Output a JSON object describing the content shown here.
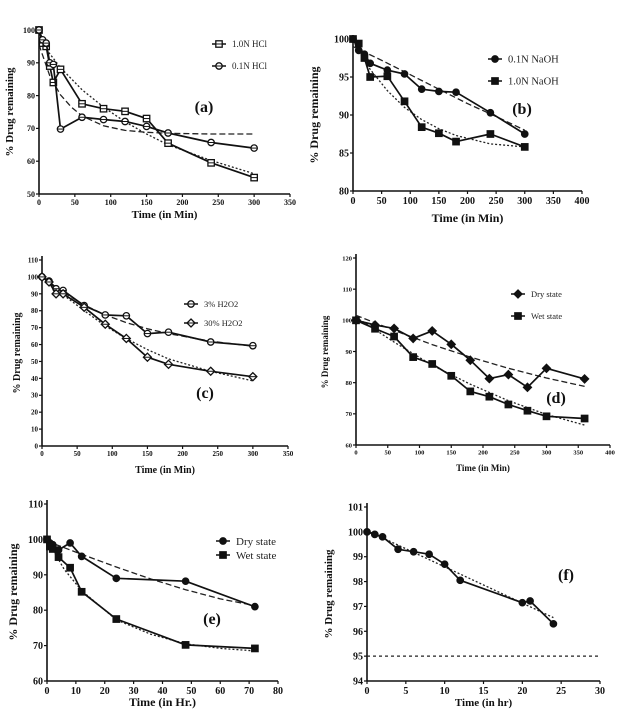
{
  "chart_data": [
    {
      "id": "a",
      "type": "line",
      "panel_label": "(a)",
      "xlabel": "Time (in Min)",
      "ylabel": "% Drug remaining",
      "xlim": [
        0,
        350
      ],
      "ylim": [
        50,
        100
      ],
      "xticks": [
        0,
        50,
        100,
        150,
        200,
        250,
        300,
        350
      ],
      "yticks": [
        50,
        60,
        70,
        80,
        90,
        100
      ],
      "legend_position": "top-right",
      "series": [
        {
          "name": "1.0N HCl",
          "marker": "square-open",
          "x": [
            0,
            5,
            10,
            15,
            20,
            30,
            60,
            90,
            120,
            150,
            180,
            240,
            300
          ],
          "y": [
            100,
            96,
            95,
            89,
            84,
            88,
            77.5,
            76,
            75.2,
            73,
            65.5,
            59.5,
            55
          ]
        },
        {
          "name": "0.1N HCl",
          "marker": "circle-open",
          "x": [
            0,
            5,
            10,
            15,
            20,
            30,
            60,
            90,
            120,
            150,
            180,
            240,
            300
          ],
          "y": [
            100,
            97,
            96,
            90,
            89.5,
            69.8,
            73.4,
            72.7,
            72.1,
            70.6,
            68.6,
            65.7,
            64
          ]
        }
      ],
      "fits": [
        {
          "style": "dashed",
          "x": [
            0,
            15,
            30,
            45,
            60,
            90,
            120,
            150,
            180,
            240,
            300
          ],
          "y": [
            95.5,
            86,
            80.2,
            76.5,
            73.8,
            70.8,
            69.4,
            68.8,
            68.5,
            68.3,
            68.3
          ]
        },
        {
          "style": "dotted",
          "x": [
            0,
            30,
            60,
            90,
            120,
            150,
            180,
            240,
            300
          ],
          "y": [
            97,
            88.5,
            81.8,
            76.5,
            72,
            68.3,
            65,
            60.2,
            56.2
          ]
        }
      ]
    },
    {
      "id": "b",
      "type": "line",
      "panel_label": "(b)",
      "xlabel": "Time (in Min)",
      "ylabel": "% Drug remaining",
      "xlim": [
        0,
        400
      ],
      "ylim": [
        80,
        100
      ],
      "xticks": [
        0,
        50,
        100,
        150,
        200,
        250,
        300,
        350,
        400
      ],
      "yticks": [
        80,
        85,
        90,
        95,
        100
      ],
      "legend_position": "top-right",
      "series": [
        {
          "name": "0.1N NaOH",
          "marker": "circle-filled",
          "x": [
            0,
            10,
            20,
            30,
            60,
            90,
            120,
            150,
            180,
            240,
            300
          ],
          "y": [
            100,
            98.5,
            98,
            96.8,
            95.9,
            95.4,
            93.4,
            93.1,
            93,
            90.3,
            87.5
          ]
        },
        {
          "name": "1.0N NaOH",
          "marker": "square-filled",
          "x": [
            0,
            10,
            20,
            30,
            60,
            90,
            120,
            150,
            180,
            240,
            300
          ],
          "y": [
            100,
            99.4,
            97.5,
            95,
            95.1,
            91.8,
            88.4,
            87.6,
            86.5,
            87.5,
            85.8
          ]
        }
      ],
      "fits": [
        {
          "style": "dashed",
          "x": [
            0,
            50,
            100,
            150,
            200,
            250,
            300
          ],
          "y": [
            99,
            97.2,
            95.3,
            93.4,
            91.5,
            89.8,
            88
          ]
        },
        {
          "style": "dotted",
          "x": [
            0,
            30,
            60,
            90,
            120,
            150,
            180,
            240,
            300
          ],
          "y": [
            99.8,
            96,
            93.2,
            91,
            89.4,
            88.2,
            87.3,
            86.2,
            85.8
          ]
        }
      ]
    },
    {
      "id": "c",
      "type": "line",
      "panel_label": "(c)",
      "xlabel": "Time (in Min)",
      "ylabel": "% Drug remaining",
      "xlim": [
        0,
        350
      ],
      "ylim": [
        0,
        110
      ],
      "xticks": [
        0,
        50,
        100,
        150,
        200,
        250,
        300,
        350
      ],
      "yticks": [
        0,
        10,
        20,
        30,
        40,
        50,
        60,
        70,
        80,
        90,
        100,
        110
      ],
      "legend_position": "top-right",
      "series": [
        {
          "name": "3% H2O2",
          "marker": "circle-open",
          "x": [
            0,
            10,
            20,
            30,
            60,
            90,
            120,
            150,
            180,
            240,
            300
          ],
          "y": [
            100,
            97.5,
            93,
            92,
            83,
            77.5,
            77,
            66.5,
            67.3,
            61.5,
            59.3
          ]
        },
        {
          "name": "30% H2O2",
          "marker": "diamond-open",
          "x": [
            0,
            10,
            20,
            30,
            60,
            90,
            120,
            150,
            180,
            240,
            300
          ],
          "y": [
            100,
            97,
            90,
            90,
            82,
            72,
            63.6,
            52.5,
            48.3,
            44.2,
            41
          ]
        }
      ],
      "fits": [
        {
          "style": "dashed",
          "x": [
            0,
            30,
            60,
            90,
            120,
            150,
            180,
            240,
            300
          ],
          "y": [
            100,
            91,
            83.4,
            77.5,
            73,
            69.3,
            66.5,
            62,
            59
          ]
        },
        {
          "style": "dotted",
          "x": [
            0,
            30,
            60,
            90,
            120,
            150,
            180,
            240,
            300
          ],
          "y": [
            100,
            89.5,
            80,
            71,
            63.5,
            57,
            51.5,
            44.2,
            38.5
          ]
        }
      ]
    },
    {
      "id": "d",
      "type": "line",
      "panel_label": "(d)",
      "xlabel": "Time (in Min)",
      "ylabel": "% Drug remaining",
      "xlim": [
        0,
        400
      ],
      "ylim": [
        60,
        120
      ],
      "xticks": [
        0,
        50,
        100,
        150,
        200,
        250,
        300,
        350,
        400
      ],
      "yticks": [
        60,
        70,
        80,
        90,
        100,
        110,
        120
      ],
      "legend_position": "top-right",
      "series": [
        {
          "name": "Dry state",
          "marker": "diamond-filled",
          "x": [
            0,
            30,
            60,
            90,
            120,
            150,
            180,
            210,
            240,
            270,
            300,
            360
          ],
          "y": [
            100,
            98.5,
            97.4,
            94.2,
            96.6,
            92.3,
            87.2,
            81.3,
            82.6,
            78.5,
            84.6,
            81.2
          ]
        },
        {
          "name": "Wet state",
          "marker": "square-filled",
          "x": [
            0,
            30,
            60,
            90,
            120,
            150,
            180,
            210,
            240,
            270,
            300,
            360
          ],
          "y": [
            100,
            97.3,
            94.8,
            88.2,
            86,
            82.2,
            77.2,
            75.5,
            73,
            71,
            69.2,
            68.5
          ]
        }
      ],
      "fits": [
        {
          "style": "dashed",
          "x": [
            0,
            60,
            120,
            180,
            240,
            300,
            360
          ],
          "y": [
            101.6,
            96.8,
            92.2,
            88.2,
            84.6,
            81.5,
            78.8
          ]
        },
        {
          "style": "dotted",
          "x": [
            0,
            60,
            120,
            180,
            240,
            300,
            360
          ],
          "y": [
            101,
            93,
            85.6,
            79.5,
            74.2,
            69.8,
            66.4
          ]
        }
      ]
    },
    {
      "id": "e",
      "type": "line",
      "panel_label": "(e)",
      "xlabel": "Time (in Hr.)",
      "ylabel": "% Drug remaining",
      "xlim": [
        0,
        80
      ],
      "ylim": [
        60,
        110
      ],
      "xticks": [
        0,
        10,
        20,
        30,
        40,
        50,
        60,
        70,
        80
      ],
      "yticks": [
        60,
        70,
        80,
        90,
        100,
        110
      ],
      "legend_position": "top-right",
      "series": [
        {
          "name": "Dry state",
          "marker": "circle-filled",
          "x": [
            0,
            1,
            2,
            4,
            8,
            12,
            24,
            48,
            72
          ],
          "y": [
            100,
            99,
            98.5,
            97,
            99,
            95.2,
            89,
            88.2,
            81
          ]
        },
        {
          "name": "Wet state",
          "marker": "square-filled",
          "x": [
            0,
            1,
            2,
            4,
            8,
            12,
            24,
            48,
            72
          ],
          "y": [
            100,
            98,
            97.3,
            95,
            92,
            85.2,
            77.5,
            70.2,
            69.2
          ]
        }
      ],
      "fits": [
        {
          "style": "dashed",
          "x": [
            0,
            12,
            24,
            36,
            48,
            60,
            72
          ],
          "y": [
            99.5,
            95.8,
            92.2,
            88.8,
            85.8,
            83.2,
            81.3
          ]
        },
        {
          "style": "dotted",
          "x": [
            0,
            6,
            12,
            24,
            36,
            48,
            60,
            72
          ],
          "y": [
            100,
            91.5,
            85.5,
            77.3,
            73.2,
            70.5,
            69.2,
            68.5
          ]
        }
      ]
    },
    {
      "id": "f",
      "type": "line",
      "panel_label": "(f)",
      "xlabel": "Time (in hr)",
      "ylabel": "% Drug remaining",
      "xlim": [
        0,
        30
      ],
      "ylim": [
        94,
        101
      ],
      "xticks": [
        0,
        5,
        10,
        15,
        20,
        25,
        30
      ],
      "yticks": [
        94,
        95,
        96,
        97,
        98,
        99,
        100,
        101
      ],
      "legend_position": "none",
      "series": [
        {
          "name": "",
          "marker": "circle-filled",
          "x": [
            0,
            1,
            2,
            4,
            6,
            8,
            10,
            12,
            20,
            21,
            24
          ],
          "y": [
            100,
            99.9,
            99.8,
            99.3,
            99.2,
            99.1,
            98.7,
            98.05,
            97.15,
            97.22,
            96.3
          ]
        }
      ],
      "fits": [
        {
          "style": "dotted",
          "x": [
            0,
            24
          ],
          "y": [
            100.05,
            96.55
          ]
        }
      ],
      "reference_line": {
        "y": 95,
        "style": "dotted"
      }
    }
  ]
}
